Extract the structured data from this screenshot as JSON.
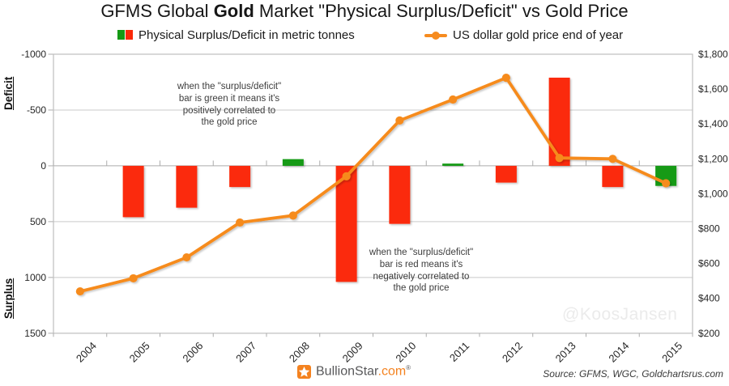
{
  "title": {
    "prefix": "GFMS Global ",
    "bold": "Gold",
    "suffix": " Market \"Physical Surplus/Deficit\" vs Gold Price"
  },
  "legend": {
    "bars_label": "Physical Surplus/Deficit in metric tonnes",
    "line_label": "US dollar gold price end of year"
  },
  "axes": {
    "left_title_top": "Deficit",
    "left_title_bottom": "Surplus",
    "left_ticks": [
      "-1000",
      "-500",
      "0",
      "500",
      "1000",
      "1500"
    ],
    "right_ticks": [
      "$1,800",
      "$1,600",
      "$1,400",
      "$1,200",
      "$1,000",
      "$800",
      "$600",
      "$400",
      "$200"
    ]
  },
  "annotations": {
    "green_note": "when the \"surplus/deficit\"\nbar is green it means it's\npositively correlated to\nthe gold price",
    "red_note": "when the \"surplus/deficit\"\nbar is red means it's\nnegatively correlated to\nthe gold price"
  },
  "watermark": "@KoosJansen",
  "footer": {
    "brand_name": "BullionStar",
    "brand_tld": ".com",
    "registered": "®",
    "source": "Source: GFMS, WGC, Goldchartsrus.com"
  },
  "colors": {
    "bar_red": "#FB2908",
    "bar_green": "#149A14",
    "line_orange": "#F68B1F",
    "grid": "#C9C9C9",
    "zero_axis": "#ACACAC",
    "border": "#BFBFBF",
    "tick_text": "#262626",
    "watermark_gray": "#EBEBEB",
    "brand_orange": "#F4821F",
    "brand_gray": "#58585A"
  },
  "chart_data": {
    "type": "combo bar + line",
    "title": "GFMS Global Gold Market \"Physical Surplus/Deficit\" vs Gold Price",
    "categories": [
      "2004",
      "2005",
      "2006",
      "2007",
      "2008",
      "2009",
      "2010",
      "2011",
      "2012",
      "2013",
      "2014",
      "2015"
    ],
    "series": [
      {
        "name": "Physical Surplus/Deficit in metric tonnes",
        "type": "bar",
        "axis": "left",
        "unit": "metric tonnes",
        "values": [
          null,
          460,
          375,
          190,
          -60,
          1040,
          520,
          -20,
          150,
          -790,
          190,
          180
        ],
        "point_colors": [
          null,
          "red",
          "red",
          "red",
          "green",
          "red",
          "red",
          "green",
          "red",
          "red",
          "red",
          "green"
        ],
        "encoding_note": "positive = surplus (bar drawn downward from 0), negative = deficit (bar drawn upward from 0); axis is inverted with deficit on top"
      },
      {
        "name": "US dollar gold price end of year",
        "type": "line",
        "axis": "right",
        "unit": "USD",
        "values": [
          440,
          515,
          635,
          835,
          875,
          1100,
          1420,
          1540,
          1665,
          1205,
          1200,
          1060
        ]
      }
    ],
    "left_axis": {
      "top": -1000,
      "bottom": 1500,
      "step": 500,
      "inverted": true,
      "zone_top": "Deficit",
      "zone_bottom": "Surplus"
    },
    "right_axis": {
      "min": 200,
      "max": 1800,
      "step": 200,
      "format": "$#,##0"
    },
    "legend_position": "top",
    "gridlines": "horizontal"
  }
}
